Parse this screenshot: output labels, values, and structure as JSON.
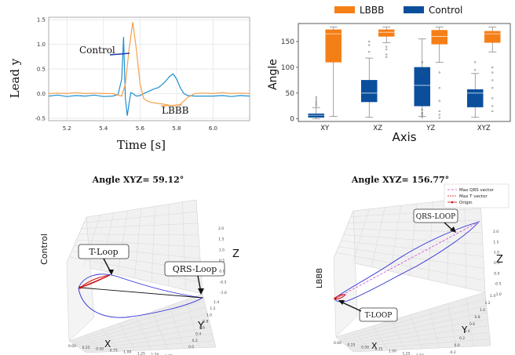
{
  "chart_data": [
    {
      "type": "line",
      "ylabel": "Lead y",
      "xlabel": "Time [s]",
      "xlim": [
        5.1,
        6.2
      ],
      "ylim": [
        -0.55,
        1.55
      ],
      "x_ticks": [
        "5.2",
        "5.4",
        "5.6",
        "5.8",
        "6.0"
      ],
      "y_ticks": [
        "-0.5",
        "0.0",
        "0.5",
        "1.0",
        "1.5"
      ],
      "grid": true,
      "annotations": [
        "Control",
        "LBBB"
      ],
      "series": [
        {
          "name": "Control",
          "color": "#1f8fd0",
          "x": [
            5.1,
            5.15,
            5.2,
            5.25,
            5.3,
            5.35,
            5.4,
            5.45,
            5.48,
            5.5,
            5.51,
            5.52,
            5.53,
            5.54,
            5.55,
            5.56,
            5.58,
            5.6,
            5.62,
            5.65,
            5.68,
            5.7,
            5.72,
            5.74,
            5.76,
            5.78,
            5.8,
            5.82,
            5.84,
            5.86,
            5.9,
            5.95,
            6.0,
            6.05,
            6.1,
            6.15,
            6.2
          ],
          "y": [
            -0.05,
            -0.03,
            -0.06,
            -0.04,
            -0.05,
            -0.03,
            -0.06,
            -0.05,
            -0.02,
            0.3,
            1.15,
            -0.1,
            -0.45,
            -0.2,
            0.02,
            0.0,
            -0.05,
            -0.04,
            0.0,
            0.05,
            0.1,
            0.12,
            0.18,
            0.25,
            0.34,
            0.4,
            0.3,
            0.12,
            0.0,
            -0.04,
            -0.05,
            -0.05,
            -0.05,
            -0.04,
            -0.06,
            -0.04,
            -0.05
          ]
        },
        {
          "name": "LBBB",
          "color": "#f5a04a",
          "x": [
            5.1,
            5.15,
            5.2,
            5.25,
            5.3,
            5.35,
            5.4,
            5.45,
            5.5,
            5.52,
            5.54,
            5.56,
            5.58,
            5.6,
            5.62,
            5.64,
            5.66,
            5.7,
            5.74,
            5.78,
            5.82,
            5.86,
            5.9,
            5.95,
            6.0,
            6.05,
            6.1,
            6.15,
            6.2
          ],
          "y": [
            0.0,
            0.01,
            0.0,
            0.02,
            0.0,
            0.01,
            0.0,
            0.0,
            -0.05,
            0.2,
            0.9,
            1.45,
            0.9,
            0.2,
            -0.1,
            -0.15,
            -0.18,
            -0.2,
            -0.22,
            -0.25,
            -0.22,
            -0.08,
            0.0,
            0.01,
            0.0,
            0.02,
            0.0,
            0.01,
            0.0
          ]
        }
      ]
    },
    {
      "type": "box",
      "ylabel": "Angle",
      "xlabel": "Axis",
      "categories": [
        "XY",
        "XZ",
        "YZ",
        "XYZ"
      ],
      "ylim": [
        -5,
        185
      ],
      "y_ticks": [
        "0",
        "50",
        "100",
        "150"
      ],
      "legend": {
        "position": "top",
        "entries": [
          "LBBB",
          "Control"
        ]
      },
      "series": [
        {
          "name": "Control",
          "color": "#0b4f9c",
          "boxes": [
            {
              "min": 0,
              "q1": 3,
              "median": 7,
              "q3": 10,
              "max": 22,
              "outliers": [
                25,
                28,
                31,
                34,
                38,
                42
              ]
            },
            {
              "min": 3,
              "q1": 33,
              "median": 50,
              "q3": 75,
              "max": 118,
              "outliers": [
                130,
                143,
                150
              ]
            },
            {
              "min": 5,
              "q1": 25,
              "median": 65,
              "q3": 100,
              "max": 155,
              "outliers": [
                3,
                8,
                12,
                18,
                90,
                110
              ]
            },
            {
              "min": 3,
              "q1": 23,
              "median": 50,
              "q3": 57,
              "max": 88,
              "outliers": [
                95,
                110
              ]
            }
          ]
        },
        {
          "name": "LBBB",
          "color": "#f57f17",
          "boxes": [
            {
              "min": 5,
              "q1": 110,
              "median": 165,
              "q3": 173,
              "max": 178,
              "outliers": []
            },
            {
              "min": 148,
              "q1": 160,
              "median": 168,
              "q3": 173,
              "max": 178,
              "outliers": [
                140,
                135,
                125,
                120
              ]
            },
            {
              "min": 110,
              "q1": 145,
              "median": 160,
              "q3": 172,
              "max": 178,
              "outliers": [
                90,
                60,
                35,
                15,
                8,
                2
              ]
            },
            {
              "min": 130,
              "q1": 148,
              "median": 165,
              "q3": 170,
              "max": 178,
              "outliers": [
                100,
                90,
                75,
                60,
                40,
                25,
                15
              ]
            }
          ]
        }
      ]
    },
    {
      "type": "scatter3d",
      "title": "Angle XYZ= 59.12°",
      "zlabel_side": "Control",
      "axes": {
        "x": "X",
        "y": "Y",
        "z": "Z"
      },
      "x_ticks": [
        "0.00",
        "0.25",
        "0.50",
        "0.75",
        "1.00",
        "1.25",
        "1.50",
        "1.75"
      ],
      "y_ticks": [
        "0.0",
        "0.2",
        "0.4",
        "0.6",
        "0.8",
        "1.0",
        "1.2",
        "1.4"
      ],
      "z_ticks": [
        "-1.0",
        "-0.5",
        "0.0",
        "0.5",
        "1.0",
        "1.5",
        "2.0"
      ],
      "annotations": [
        "T-Loop",
        "QRS-Loop"
      ]
    },
    {
      "type": "scatter3d",
      "title": "Angle XYZ= 156.77°",
      "zlabel_side": "LBBB",
      "axes": {
        "x": "X",
        "y": "Y",
        "z": "Z"
      },
      "x_ticks": [
        "0.00",
        "0.25",
        "0.50",
        "0.75",
        "1.00",
        "1.25",
        "1.50"
      ],
      "y_ticks": [
        "-0.2",
        "0.0",
        "0.2",
        "0.4",
        "0.6",
        "0.8",
        "1.0",
        "1.2",
        "1.4"
      ],
      "z_ticks": [
        "-1.0",
        "-0.5",
        "0.0",
        "0.5",
        "1.0",
        "1.5",
        "2.0"
      ],
      "legend": {
        "position": "top-right",
        "entries": [
          "Max QRS vector",
          "Max T vector",
          "Origin"
        ]
      },
      "annotations": [
        "QRS-LOOP",
        "T-LOOP"
      ]
    }
  ]
}
